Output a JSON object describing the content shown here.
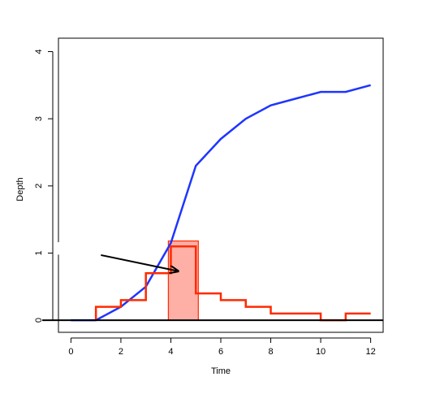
{
  "chart_data": {
    "type": "line",
    "xlabel": "Time",
    "ylabel": "Depth",
    "xlim": [
      -0.5,
      12.5
    ],
    "ylim": [
      -0.18,
      4.2
    ],
    "x_ticks": [
      "0",
      "2",
      "4",
      "6",
      "8",
      "10",
      "12"
    ],
    "y_ticks": [
      "0",
      "1",
      "2",
      "3",
      "4"
    ],
    "axis_break_at_y": 1.05,
    "series": [
      {
        "style": "line",
        "color": "#1f35ff",
        "x": [
          0,
          1,
          2,
          3,
          4,
          5,
          6,
          7,
          8,
          9,
          10,
          11,
          12
        ],
        "y": [
          0,
          0,
          0.2,
          0.5,
          1.15,
          2.3,
          2.7,
          3.0,
          3.2,
          3.3,
          3.4,
          3.4,
          3.5
        ]
      },
      {
        "style": "step",
        "color": "#ff2a00",
        "x": [
          1,
          2,
          3,
          4,
          5,
          6,
          7,
          8,
          9,
          10,
          11,
          12
        ],
        "y": [
          0.2,
          0.3,
          0.7,
          1.1,
          0.4,
          0.3,
          0.2,
          0.1,
          0.1,
          0.0,
          0.1,
          0.1
        ]
      }
    ],
    "highlight": {
      "x_start": 3.9,
      "x_end": 5.1,
      "y_top": 1.18,
      "fill": "#ffb0a6",
      "stroke": "#ff2a00"
    },
    "annotation_arrow": {
      "from": [
        1.2,
        0.97
      ],
      "to": [
        4.3,
        0.73
      ]
    },
    "baseline_y": 0
  }
}
